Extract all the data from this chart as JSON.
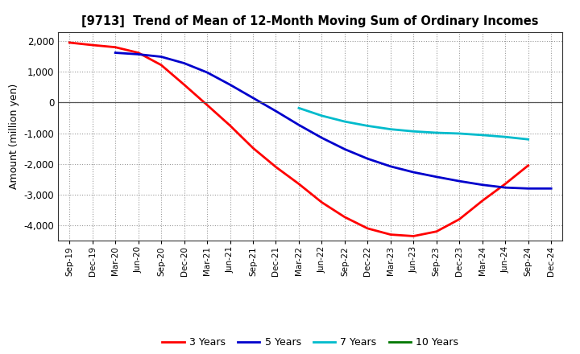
{
  "title": "[9713]  Trend of Mean of 12-Month Moving Sum of Ordinary Incomes",
  "ylabel": "Amount (million yen)",
  "ylim": [
    -4500,
    2300
  ],
  "yticks": [
    -4000,
    -3000,
    -2000,
    -1000,
    0,
    1000,
    2000
  ],
  "background_color": "#ffffff",
  "plot_bg_color": "#e8e8f0",
  "grid_color": "#aaaaaa",
  "legend_entries": [
    "3 Years",
    "5 Years",
    "7 Years",
    "10 Years"
  ],
  "legend_colors": [
    "#ff0000",
    "#0000cc",
    "#00bbcc",
    "#007700"
  ],
  "x_labels": [
    "Sep-19",
    "Dec-19",
    "Mar-20",
    "Jun-20",
    "Sep-20",
    "Dec-20",
    "Mar-21",
    "Jun-21",
    "Sep-21",
    "Dec-21",
    "Mar-22",
    "Jun-22",
    "Sep-22",
    "Dec-22",
    "Mar-23",
    "Jun-23",
    "Sep-23",
    "Dec-23",
    "Mar-24",
    "Jun-24",
    "Sep-24",
    "Dec-24"
  ],
  "series_3yr": [
    1950,
    1870,
    1800,
    1620,
    1220,
    580,
    -80,
    -750,
    -1480,
    -2100,
    -2650,
    -3250,
    -3730,
    -4100,
    -4300,
    -4350,
    -4200,
    -3800,
    -3200,
    -2650,
    -2050,
    null
  ],
  "series_5yr": [
    null,
    null,
    1620,
    1570,
    1490,
    1280,
    980,
    580,
    150,
    -280,
    -730,
    -1150,
    -1520,
    -1830,
    -2080,
    -2270,
    -2420,
    -2560,
    -2680,
    -2770,
    -2800,
    -2800
  ],
  "series_7yr": [
    null,
    null,
    null,
    null,
    null,
    null,
    null,
    null,
    null,
    null,
    -180,
    -430,
    -620,
    -760,
    -870,
    -940,
    -985,
    -1010,
    -1060,
    -1120,
    -1200,
    null
  ],
  "series_10yr": [
    null,
    null,
    null,
    null,
    null,
    null,
    null,
    null,
    null,
    null,
    null,
    null,
    null,
    null,
    null,
    null,
    null,
    null,
    null,
    null,
    null,
    null
  ]
}
